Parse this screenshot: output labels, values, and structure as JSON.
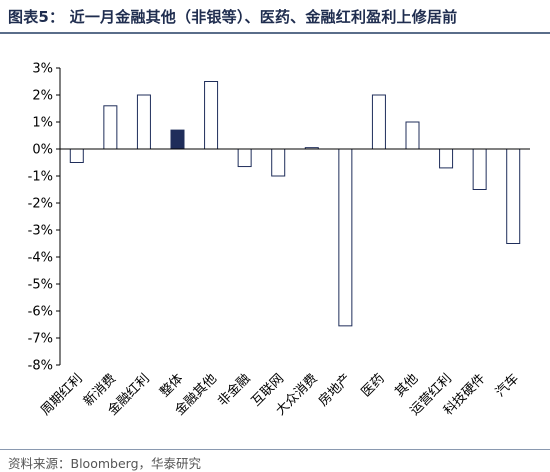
{
  "title": "图表5：  近一月金融其他（非银等）、医药、金融红利盈利上修居前",
  "source": "资料来源：Bloomberg，华泰研究",
  "colors": {
    "bar_border": "#1f2d5a",
    "highlight_fill": "#1f2d5a",
    "bar_fill": "#ffffff"
  },
  "chart_data": {
    "type": "bar",
    "title": "",
    "xlabel": "",
    "ylabel": "",
    "ylim": [
      -8,
      3
    ],
    "yticks": [
      "3%",
      "2%",
      "1%",
      "0%",
      "-1%",
      "-2%",
      "-3%",
      "-4%",
      "-5%",
      "-6%",
      "-7%",
      "-8%"
    ],
    "ytick_values": [
      3,
      2,
      1,
      0,
      -1,
      -2,
      -3,
      -4,
      -5,
      -6,
      -7,
      -8
    ],
    "unit": "%",
    "categories": [
      "周期红利",
      "新消费",
      "金融红利",
      "整体",
      "金融其他",
      "非金融",
      "互联网",
      "大众消费",
      "房地产",
      "医药",
      "其他",
      "运营红利",
      "科技硬件",
      "汽车"
    ],
    "values": [
      -0.5,
      1.6,
      2.0,
      0.7,
      2.5,
      -0.65,
      -1.0,
      0.05,
      -6.55,
      2.0,
      1.0,
      -0.7,
      -1.5,
      -3.5
    ],
    "highlight": "整体",
    "grid": false,
    "legend": "none"
  }
}
